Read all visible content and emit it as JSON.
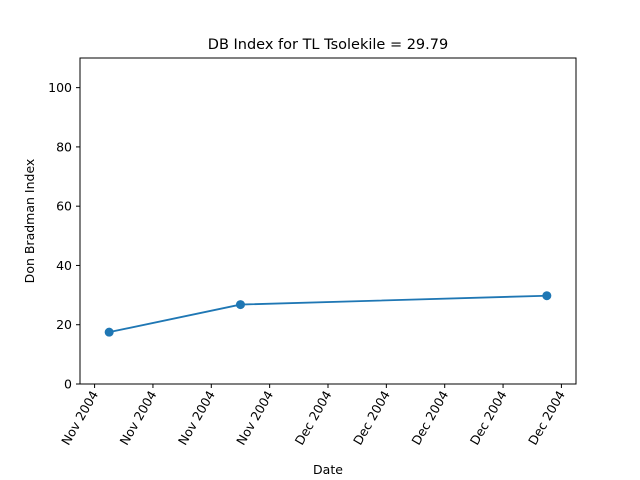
{
  "chart_data": {
    "type": "line",
    "title": "DB Index for TL Tsolekile = 29.79",
    "xlabel": "Date",
    "ylabel": "Don Bradman Index",
    "x_tick_labels": [
      "Nov 2004",
      "Nov 2004",
      "Nov 2004",
      "Nov 2004",
      "Dec 2004",
      "Dec 2004",
      "Dec 2004",
      "Dec 2004",
      "Dec 2004"
    ],
    "y_ticks": [
      0,
      20,
      40,
      60,
      80,
      100
    ],
    "ylim": [
      0,
      110
    ],
    "grid": false,
    "series": [
      {
        "color": "#1f77b4",
        "points": [
          {
            "x": "2004-11-17",
            "y": 17.5
          },
          {
            "x": "2004-11-26",
            "y": 26.8
          },
          {
            "x": "2004-12-17",
            "y": 29.79
          }
        ]
      }
    ]
  }
}
